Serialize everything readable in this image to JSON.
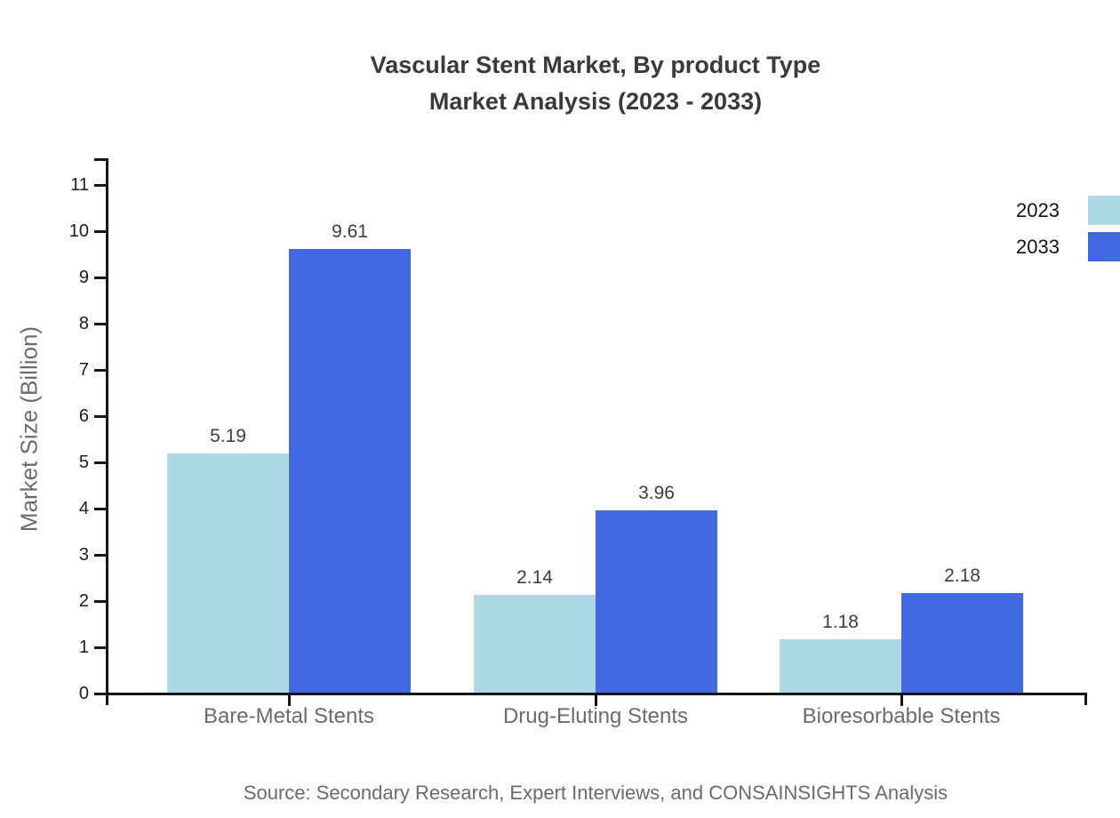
{
  "title": {
    "line1": "Vascular Stent Market, By product Type",
    "line2": "Market Analysis (2023 - 2033)"
  },
  "source": "Source: Secondary Research, Expert Interviews, and CONSAINSIGHTS Analysis",
  "chart_data": {
    "type": "bar",
    "title": "Vascular Stent Market, By product Type Market Analysis (2023 - 2033)",
    "categories": [
      "Bare-Metal Stents",
      "Drug-Eluting Stents",
      "Bioresorbable Stents"
    ],
    "series": [
      {
        "name": "2023",
        "color": "#ADD8E6",
        "values": [
          5.19,
          2.14,
          1.18
        ]
      },
      {
        "name": "2033",
        "color": "#4169E1",
        "values": [
          9.61,
          3.96,
          2.18
        ]
      }
    ],
    "value_labels": {
      "2023": [
        "5.19",
        "2.14",
        "1.18"
      ],
      "2033": [
        "9.61",
        "3.96",
        "2.18"
      ]
    },
    "xlabel": "",
    "ylabel": "Market Size (Billion)",
    "yticks": [
      0,
      1,
      2,
      3,
      4,
      5,
      6,
      7,
      8,
      9,
      10,
      11
    ],
    "ylim": [
      0,
      11.5
    ],
    "grid": false,
    "legend_position": "top-right",
    "axis_color": "#14161c",
    "text_dark": "#3a3a3a",
    "text_gray": "#6b6b6b"
  }
}
